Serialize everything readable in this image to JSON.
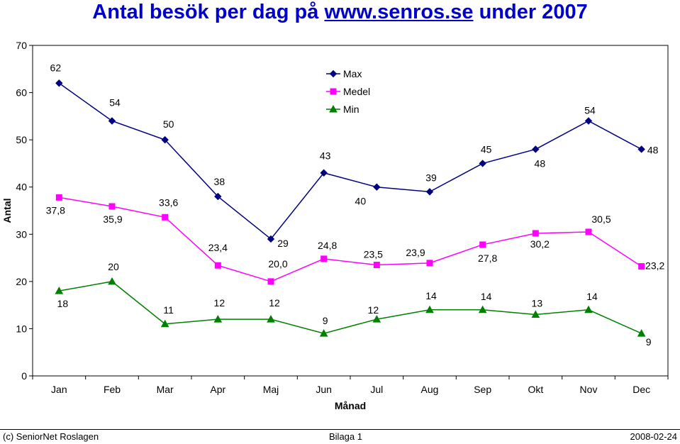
{
  "title": {
    "prefix": "Antal besök per dag på ",
    "link": "www.senros.se",
    "suffix": " under 2007"
  },
  "colors": {
    "max": "#000080",
    "medel": "#ff00ff",
    "min": "#008000",
    "title": "#0000cc"
  },
  "chart_data": {
    "type": "line",
    "categories": [
      "Jan",
      "Feb",
      "Mar",
      "Apr",
      "Maj",
      "Jun",
      "Jul",
      "Aug",
      "Sep",
      "Okt",
      "Nov",
      "Dec"
    ],
    "xlabel": "Månad",
    "ylabel": "Antal",
    "ylim": [
      0,
      70
    ],
    "yticks": [
      "0",
      "10",
      "20",
      "30",
      "40",
      "50",
      "60",
      "70"
    ],
    "grid": false,
    "legend": "top-center",
    "series": [
      {
        "name": "Max",
        "marker": "diamond",
        "values": [
          62,
          54,
          50,
          38,
          29,
          43,
          40,
          39,
          45,
          48,
          54,
          48
        ],
        "labels": [
          "62",
          "54",
          "50",
          "38",
          "29",
          "43",
          "40",
          "39",
          "45",
          "48",
          "54",
          "48"
        ]
      },
      {
        "name": "Medel",
        "marker": "square",
        "values": [
          37.8,
          35.9,
          33.6,
          23.4,
          20.0,
          24.8,
          23.5,
          23.9,
          27.8,
          30.2,
          30.5,
          23.2
        ],
        "labels": [
          "37,8",
          "35,9",
          "33,6",
          "23,4",
          "20,0",
          "24,8",
          "23,5",
          "23,9",
          "27,8",
          "30,2",
          "30,5",
          "23,2"
        ]
      },
      {
        "name": "Min",
        "marker": "triangle",
        "values": [
          18,
          20,
          11,
          12,
          12,
          9,
          12,
          14,
          14,
          13,
          14,
          9
        ],
        "labels": [
          "18",
          "20",
          "11",
          "12",
          "12",
          "9",
          "12",
          "14",
          "14",
          "13",
          "14",
          "9"
        ]
      }
    ]
  },
  "footer": {
    "left": "(c) SeniorNet Roslagen",
    "center": "Bilaga 1",
    "right": "2008-02-24"
  }
}
